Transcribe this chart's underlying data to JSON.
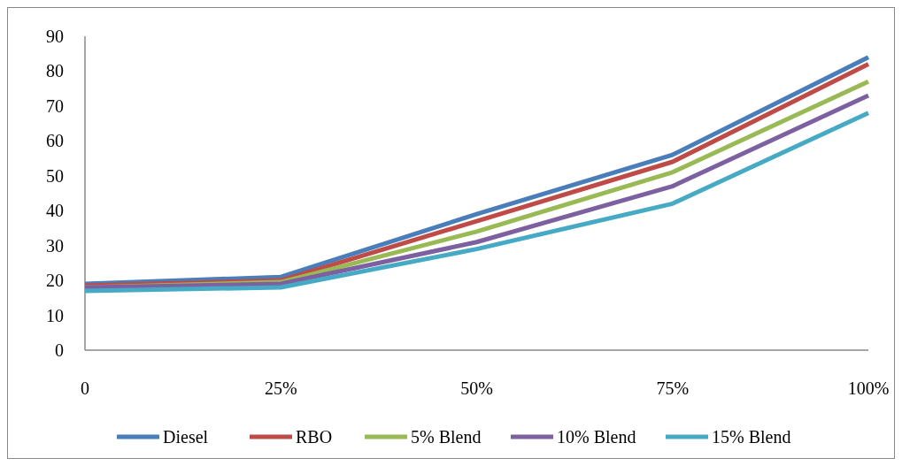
{
  "chart_data": {
    "type": "line",
    "categories": [
      "0",
      "25%",
      "50%",
      "75%",
      "100%"
    ],
    "series": [
      {
        "name": "Diesel",
        "color": "#4a7ebb",
        "values": [
          19,
          21,
          39,
          56,
          84
        ]
      },
      {
        "name": "RBO",
        "color": "#be4b48",
        "values": [
          18.5,
          20,
          37,
          54,
          82
        ]
      },
      {
        "name": "5% Blend",
        "color": "#98b954",
        "values": [
          18,
          19.5,
          34,
          51,
          77
        ]
      },
      {
        "name": "10% Blend",
        "color": "#7d60a0",
        "values": [
          18,
          19,
          31,
          47,
          73
        ]
      },
      {
        "name": "15% Blend",
        "color": "#46aac5",
        "values": [
          17,
          18,
          29,
          42,
          68
        ]
      }
    ],
    "ylim": [
      0,
      90
    ],
    "yticks": [
      0,
      10,
      20,
      30,
      40,
      50,
      60,
      70,
      80,
      90
    ],
    "grid": false,
    "legend": "bottom",
    "marker": "none",
    "line_style": "solid"
  }
}
